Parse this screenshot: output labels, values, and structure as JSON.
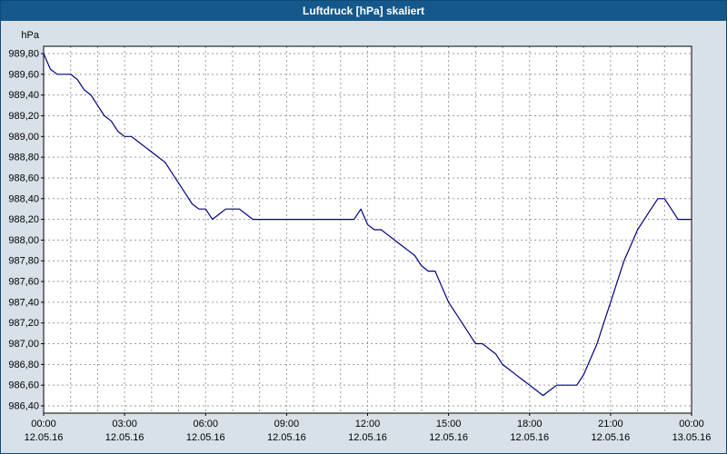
{
  "window": {
    "title": "Luftdruck [hPa] skaliert"
  },
  "colors": {
    "titlebar_bg": "#14588c",
    "titlebar_text": "#ffffff",
    "window_bg": "#d8e1e8",
    "plot_bg": "#ffffff",
    "grid": "#9a9a9a",
    "axis": "#000000",
    "line": "#000080",
    "label_text": "#000000"
  },
  "chart_data": {
    "type": "line",
    "title": "Luftdruck [hPa] skaliert",
    "ylabel": "hPa",
    "ylim": [
      986.4,
      989.8
    ],
    "y_tick_step": 0.2,
    "y_ticks": [
      989.8,
      989.6,
      989.4,
      989.2,
      989.0,
      988.8,
      988.6,
      988.4,
      988.2,
      988.0,
      987.8,
      987.6,
      987.4,
      987.2,
      987.0,
      986.8,
      986.6,
      986.4
    ],
    "y_tick_labels": [
      "989,80",
      "989,60",
      "989,40",
      "989,20",
      "989,00",
      "988,80",
      "988,60",
      "988,40",
      "988,20",
      "988,00",
      "987,80",
      "987,60",
      "987,40",
      "987,20",
      "987,00",
      "986,80",
      "986,60",
      "986,40"
    ],
    "x_axis": {
      "unit": "time",
      "range_hours": [
        0,
        24
      ],
      "minor_grid_hours": 1,
      "ticks": [
        {
          "hour": 0,
          "time": "00:00",
          "date": "12.05.16"
        },
        {
          "hour": 3,
          "time": "03:00",
          "date": "12.05.16"
        },
        {
          "hour": 6,
          "time": "06:00",
          "date": "12.05.16"
        },
        {
          "hour": 9,
          "time": "09:00",
          "date": "12.05.16"
        },
        {
          "hour": 12,
          "time": "12:00",
          "date": "12.05.16"
        },
        {
          "hour": 15,
          "time": "15:00",
          "date": "12.05.16"
        },
        {
          "hour": 18,
          "time": "18:00",
          "date": "12.05.16"
        },
        {
          "hour": 21,
          "time": "21:00",
          "date": "12.05.16"
        },
        {
          "hour": 24,
          "time": "00:00",
          "date": "13.05.16"
        }
      ]
    },
    "grid": "dashed",
    "legend": "none",
    "series": [
      {
        "name": "Luftdruck [hPa]",
        "color": "#000080",
        "x_start_hour": 0,
        "x_step_hour": 0.25,
        "values": [
          989.8,
          989.65,
          989.6,
          989.6,
          989.6,
          989.55,
          989.45,
          989.4,
          989.3,
          989.2,
          989.15,
          989.05,
          989.0,
          989.0,
          988.95,
          988.9,
          988.85,
          988.8,
          988.75,
          988.65,
          988.55,
          988.45,
          988.35,
          988.3,
          988.3,
          988.2,
          988.25,
          988.3,
          988.3,
          988.3,
          988.25,
          988.2,
          988.2,
          988.2,
          988.2,
          988.2,
          988.2,
          988.2,
          988.2,
          988.2,
          988.2,
          988.2,
          988.2,
          988.2,
          988.2,
          988.2,
          988.2,
          988.3,
          988.15,
          988.1,
          988.1,
          988.05,
          988.0,
          987.95,
          987.9,
          987.85,
          987.75,
          987.7,
          987.7,
          987.55,
          987.4,
          987.3,
          987.2,
          987.1,
          987.0,
          987.0,
          986.95,
          986.9,
          986.8,
          986.75,
          986.7,
          986.65,
          986.6,
          986.55,
          986.5,
          986.55,
          986.6,
          986.6,
          986.6,
          986.6,
          986.7,
          986.85,
          987.0,
          987.2,
          987.4,
          987.6,
          987.8,
          987.95,
          988.1,
          988.2,
          988.3,
          988.4,
          988.4,
          988.3,
          988.2,
          988.2,
          988.2
        ]
      }
    ]
  }
}
